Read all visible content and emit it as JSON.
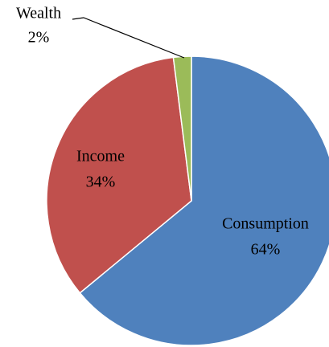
{
  "chart_data": {
    "type": "pie",
    "categories": [
      "Consumption",
      "Income",
      "Wealth"
    ],
    "values": [
      64,
      34,
      2
    ],
    "value_labels": [
      "64%",
      "34%",
      "2%"
    ],
    "colors": [
      "#4f81bd",
      "#c0504d",
      "#9bbb59"
    ]
  }
}
